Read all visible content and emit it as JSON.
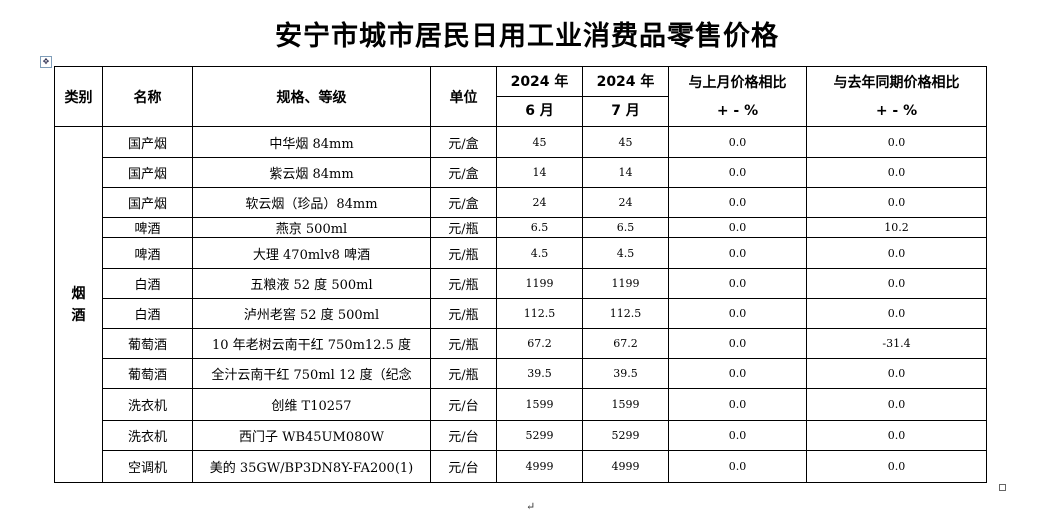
{
  "title": "安宁市城市居民日用工业消费品零售价格",
  "header": {
    "category": "类别",
    "name": "名称",
    "spec": "规格、等级",
    "unit": "单位",
    "jun_year": "2024 年",
    "jun_month": "6 月",
    "jul_year": "2024 年",
    "jul_month": "7 月",
    "mom_line1": "与上月价格相比",
    "mom_line2": "+ - %",
    "yoy_line1": "与去年同期价格相比",
    "yoy_line2": "+ - %"
  },
  "category_label": "烟\n酒",
  "rows": [
    {
      "name": "国产烟",
      "spec": "中华烟 84mm",
      "unit": "元/盒",
      "jun": "45",
      "jul": "45",
      "mom": "0.0",
      "yoy": "0.0"
    },
    {
      "name": "国产烟",
      "spec": "紫云烟 84mm",
      "unit": "元/盒",
      "jun": "14",
      "jul": "14",
      "mom": "0.0",
      "yoy": "0.0"
    },
    {
      "name": "国产烟",
      "spec": "软云烟（珍品）84mm",
      "unit": "元/盒",
      "jun": "24",
      "jul": "24",
      "mom": "0.0",
      "yoy": "0.0"
    },
    {
      "name": "啤酒",
      "spec": "燕京 500ml",
      "unit": "元/瓶",
      "jun": "6.5",
      "jul": "6.5",
      "mom": "0.0",
      "yoy": "10.2"
    },
    {
      "name": "啤酒",
      "spec": "大理 470mlv8 啤酒",
      "unit": "元/瓶",
      "jun": "4.5",
      "jul": "4.5",
      "mom": "0.0",
      "yoy": "0.0"
    },
    {
      "name": "白酒",
      "spec": "五粮液 52 度 500ml",
      "unit": "元/瓶",
      "jun": "1199",
      "jul": "1199",
      "mom": "0.0",
      "yoy": "0.0"
    },
    {
      "name": "白酒",
      "spec": "泸州老窖 52 度 500ml",
      "unit": "元/瓶",
      "jun": "112.5",
      "jul": "112.5",
      "mom": "0.0",
      "yoy": "0.0"
    },
    {
      "name": "葡萄酒",
      "spec": "10 年老树云南干红 750m12.5 度",
      "unit": "元/瓶",
      "jun": "67.2",
      "jul": "67.2",
      "mom": "0.0",
      "yoy": "-31.4"
    },
    {
      "name": "葡萄酒",
      "spec": "全汁云南干红 750ml 12 度（纪念",
      "unit": "元/瓶",
      "jun": "39.5",
      "jul": "39.5",
      "mom": "0.0",
      "yoy": "0.0"
    },
    {
      "name": "洗衣机",
      "spec": "创维 T10257",
      "unit": "元/台",
      "jun": "1599",
      "jul": "1599",
      "mom": "0.0",
      "yoy": "0.0"
    },
    {
      "name": "洗衣机",
      "spec": "西门子 WB45UM080W",
      "unit": "元/台",
      "jun": "5299",
      "jul": "5299",
      "mom": "0.0",
      "yoy": "0.0"
    },
    {
      "name": "空调机",
      "spec": "美的 35GW/BP3DN8Y-FA200(1)",
      "unit": "元/台",
      "jun": "4999",
      "jul": "4999",
      "mom": "0.0",
      "yoy": "0.0"
    }
  ]
}
